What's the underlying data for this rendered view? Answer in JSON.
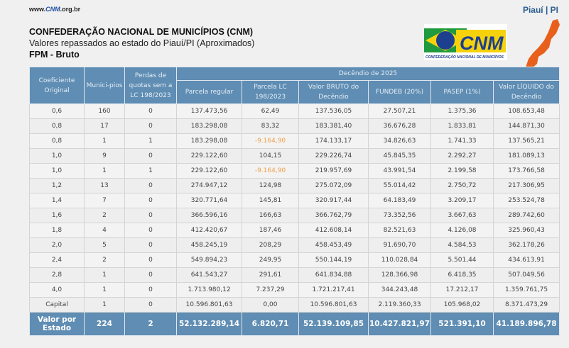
{
  "header": {
    "url_prefix": "www.",
    "url_brand": "CNM",
    "url_suffix": ".org.br",
    "state": "Piauí | PI",
    "title": "CONFEDERAÇÃO NACIONAL DE MUNICÍPIOS (CNM)",
    "subtitle": "Valores repassados ao estado do Piauí/PI (Aproximados)",
    "section": "FPM - Bruto",
    "logo_text": "CNM",
    "logo_caption": "CONFEDERAÇÃO NACIONAL DE MUNICÍPIOS",
    "map_color": "#e8601c"
  },
  "table": {
    "group_header": "Decêndio de 2025",
    "columns": [
      "Coeficiente Original",
      "Munici-pios",
      "Perdas de quotas sem a LC 198/2023",
      "Parcela regular",
      "Parcela LC 198/2023",
      "Valor BRUTO do Decêndio",
      "FUNDEB (20%)",
      "PASEP (1%)",
      "Valor LÍQUIDO do Decêndio"
    ],
    "rows": [
      [
        "0,6",
        "160",
        "0",
        "137.473,56",
        "62,49",
        "137.536,05",
        "27.507,21",
        "1.375,36",
        "108.653,48"
      ],
      [
        "0,8",
        "17",
        "0",
        "183.298,08",
        "83,32",
        "183.381,40",
        "36.676,28",
        "1.833,81",
        "144.871,30"
      ],
      [
        "0,8",
        "1",
        "1",
        "183.298,08",
        "-9.164,90",
        "174.133,17",
        "34.826,63",
        "1.741,33",
        "137.565,21"
      ],
      [
        "1,0",
        "9",
        "0",
        "229.122,60",
        "104,15",
        "229.226,74",
        "45.845,35",
        "2.292,27",
        "181.089,13"
      ],
      [
        "1,0",
        "1",
        "1",
        "229.122,60",
        "-9.164,90",
        "219.957,69",
        "43.991,54",
        "2.199,58",
        "173.766,58"
      ],
      [
        "1,2",
        "13",
        "0",
        "274.947,12",
        "124,98",
        "275.072,09",
        "55.014,42",
        "2.750,72",
        "217.306,95"
      ],
      [
        "1,4",
        "7",
        "0",
        "320.771,64",
        "145,81",
        "320.917,44",
        "64.183,49",
        "3.209,17",
        "253.524,78"
      ],
      [
        "1,6",
        "2",
        "0",
        "366.596,16",
        "166,63",
        "366.762,79",
        "73.352,56",
        "3.667,63",
        "289.742,60"
      ],
      [
        "1,8",
        "4",
        "0",
        "412.420,67",
        "187,46",
        "412.608,14",
        "82.521,63",
        "4.126,08",
        "325.960,43"
      ],
      [
        "2,0",
        "5",
        "0",
        "458.245,19",
        "208,29",
        "458.453,49",
        "91.690,70",
        "4.584,53",
        "362.178,26"
      ],
      [
        "2,4",
        "2",
        "0",
        "549.894,23",
        "249,95",
        "550.144,19",
        "110.028,84",
        "5.501,44",
        "434.613,91"
      ],
      [
        "2,8",
        "1",
        "0",
        "641.543,27",
        "291,61",
        "641.834,88",
        "128.366,98",
        "6.418,35",
        "507.049,56"
      ],
      [
        "4,0",
        "1",
        "0",
        "1.713.980,12",
        "7.237,29",
        "1.721.217,41",
        "344.243,48",
        "17.212,17",
        "1.359.761,75"
      ],
      [
        "Capital",
        "1",
        "0",
        "10.596.801,63",
        "0,00",
        "10.596.801,63",
        "2.119.360,33",
        "105.968,02",
        "8.371.473,29"
      ]
    ],
    "total": [
      "Valor por Estado",
      "224",
      "2",
      "52.132.289,14",
      "6.820,71",
      "52.139.109,85",
      "10.427.821,97",
      "521.391,10",
      "41.189.896,78"
    ],
    "header_color": "#5f8db3",
    "negative_color": "#f0a048"
  }
}
